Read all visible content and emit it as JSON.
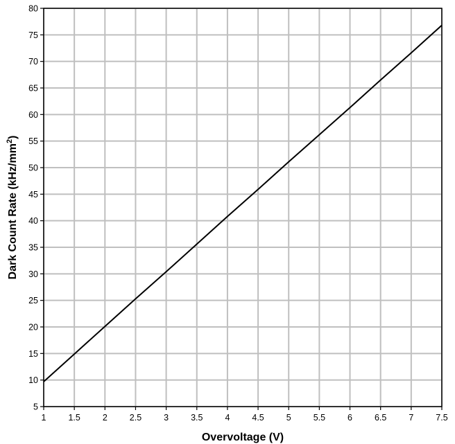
{
  "chart_data": {
    "type": "line",
    "title": "",
    "xlabel": "Overvoltage (V)",
    "ylabel_main": "Dark Count Rate (kHz/mm",
    "ylabel_sup": "2",
    "ylabel_end": ")",
    "xlim": [
      1,
      7.5
    ],
    "ylim": [
      5,
      80
    ],
    "x_ticks": [
      1,
      1.5,
      2,
      2.5,
      3,
      3.5,
      4,
      4.5,
      5,
      5.5,
      6,
      6.5,
      7,
      7.5
    ],
    "y_ticks": [
      5,
      10,
      15,
      20,
      25,
      30,
      35,
      40,
      45,
      50,
      55,
      60,
      65,
      70,
      75,
      80
    ],
    "grid": true,
    "series": [
      {
        "name": "",
        "color": "#000000",
        "x": [
          1,
          1.5,
          2,
          2.5,
          3,
          3.5,
          4,
          4.5,
          5,
          5.5,
          6,
          6.5,
          7,
          7.5
        ],
        "y": [
          9.7,
          14.9,
          20.1,
          25.3,
          30.4,
          35.6,
          40.8,
          45.9,
          51.1,
          56.2,
          61.3,
          66.5,
          71.6,
          76.8
        ]
      }
    ],
    "colors": {
      "grid": "#bfbfbf",
      "axis": "#000000",
      "line": "#000000"
    }
  }
}
